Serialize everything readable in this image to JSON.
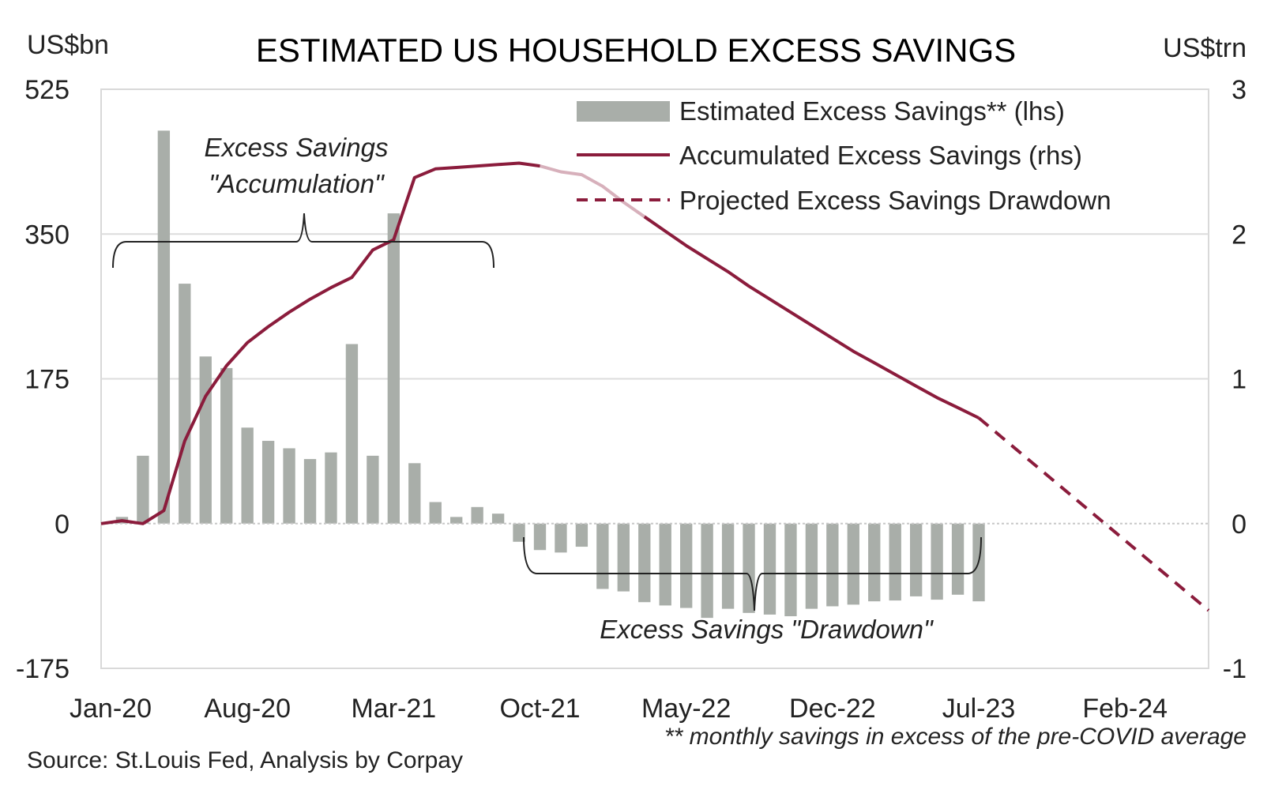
{
  "chart_data": {
    "type": "bar+line",
    "title": "ESTIMATED US HOUSEHOLD EXCESS SAVINGS",
    "left_unit": "US$bn",
    "right_unit": "US$trn",
    "ylim_left": [
      -175,
      525
    ],
    "ylim_right": [
      -1,
      3
    ],
    "left_ticks": [
      "525",
      "350",
      "175",
      "0",
      "-175"
    ],
    "right_ticks": [
      "3",
      "2",
      "1",
      "0",
      "-1"
    ],
    "x_tick_labels": [
      "Jan-20",
      "Aug-20",
      "Mar-21",
      "Oct-21",
      "May-22",
      "Dec-22",
      "Jul-23",
      "Feb-24"
    ],
    "categories": [
      "Jan-20",
      "Feb-20",
      "Mar-20",
      "Apr-20",
      "May-20",
      "Jun-20",
      "Jul-20",
      "Aug-20",
      "Sep-20",
      "Oct-20",
      "Nov-20",
      "Dec-20",
      "Jan-21",
      "Feb-21",
      "Mar-21",
      "Apr-21",
      "May-21",
      "Jun-21",
      "Jul-21",
      "Aug-21",
      "Sep-21",
      "Oct-21",
      "Nov-21",
      "Dec-21",
      "Jan-22",
      "Feb-22",
      "Mar-22",
      "Apr-22",
      "May-22",
      "Jun-22",
      "Jul-22",
      "Aug-22",
      "Sep-22",
      "Oct-22",
      "Nov-22",
      "Dec-22",
      "Jan-23",
      "Feb-23",
      "Mar-23",
      "Apr-23",
      "May-23",
      "Jun-23",
      "Jul-23",
      "Aug-23",
      "Sep-23",
      "Oct-23",
      "Nov-23",
      "Dec-23",
      "Jan-24",
      "Feb-24",
      "Mar-24",
      "Apr-24",
      "May-24",
      "Jun-24"
    ],
    "series": [
      {
        "name": "Estimated Excess Savings** (lhs)",
        "type": "bar",
        "axis": "left",
        "color": "#a9aea9",
        "x": [
          "Feb-20",
          "Mar-20",
          "Apr-20",
          "May-20",
          "Jun-20",
          "Jul-20",
          "Aug-20",
          "Sep-20",
          "Oct-20",
          "Nov-20",
          "Dec-20",
          "Jan-21",
          "Feb-21",
          "Mar-21",
          "Apr-21",
          "May-21",
          "Jun-21",
          "Jul-21",
          "Aug-21",
          "Sep-21",
          "Oct-21",
          "Nov-21",
          "Dec-21",
          "Jan-22",
          "Feb-22",
          "Mar-22",
          "Apr-22",
          "May-22",
          "Jun-22",
          "Jul-22",
          "Aug-22",
          "Sep-22",
          "Oct-22",
          "Nov-22",
          "Dec-22",
          "Jan-23",
          "Feb-23",
          "Mar-23",
          "Apr-23",
          "May-23",
          "Jun-23",
          "Jul-23"
        ],
        "values": [
          8,
          82,
          475,
          290,
          202,
          188,
          116,
          100,
          91,
          78,
          86,
          217,
          82,
          375,
          73,
          26,
          8,
          20,
          12,
          -22,
          -32,
          -35,
          -28,
          -79,
          -82,
          -95,
          -99,
          -102,
          -114,
          -103,
          -108,
          -110,
          -112,
          -103,
          -100,
          -98,
          -94,
          -93,
          -88,
          -92,
          -86,
          -94
        ]
      },
      {
        "name": "Accumulated Excess Savings (rhs)",
        "type": "line",
        "axis": "right",
        "color": "#8b1c3c",
        "x": [
          "Jan-20",
          "Feb-20",
          "Mar-20",
          "Apr-20",
          "May-20",
          "Jun-20",
          "Jul-20",
          "Aug-20",
          "Sep-20",
          "Oct-20",
          "Nov-20",
          "Dec-20",
          "Jan-21",
          "Feb-21",
          "Mar-21",
          "Apr-21",
          "May-21",
          "Jun-21",
          "Jul-21",
          "Aug-21",
          "Sep-21",
          "Oct-21",
          "Nov-21",
          "Dec-21",
          "Jan-22",
          "Feb-22",
          "Mar-22",
          "Apr-22",
          "May-22",
          "Jun-22",
          "Jul-22",
          "Aug-22",
          "Sep-22",
          "Oct-22",
          "Nov-22",
          "Dec-22",
          "Jan-23",
          "Feb-23",
          "Mar-23",
          "Apr-23",
          "May-23",
          "Jun-23",
          "Jul-23"
        ],
        "values": [
          0.0,
          0.02,
          0.0,
          0.09,
          0.57,
          0.88,
          1.09,
          1.25,
          1.36,
          1.46,
          1.55,
          1.63,
          1.7,
          1.89,
          1.96,
          2.39,
          2.45,
          2.46,
          2.47,
          2.48,
          2.49,
          2.47,
          2.43,
          2.41,
          2.33,
          2.22,
          2.12,
          2.02,
          1.92,
          1.83,
          1.74,
          1.64,
          1.55,
          1.46,
          1.37,
          1.28,
          1.19,
          1.11,
          1.03,
          0.95,
          0.87,
          0.8,
          0.73
        ]
      },
      {
        "name": "Projected Excess Savings Drawdown",
        "type": "line",
        "style": "dashed",
        "axis": "right",
        "color": "#8b1c3c",
        "x": [
          "Jul-23",
          "Jun-24"
        ],
        "values": [
          0.73,
          -0.6
        ]
      }
    ],
    "annotations": [
      {
        "text_line1": "Excess Savings",
        "text_line2": "\"Accumulation\""
      },
      {
        "text": "Excess Savings \"Drawdown\""
      }
    ],
    "legend_position": "top-right",
    "grid": "horizontal",
    "footnote": "** monthly savings in excess of the pre-COVID average",
    "source": "Source: St.Louis Fed, Analysis by Corpay",
    "colors": {
      "accent": "#8b1c3c",
      "bar": "#a9aea9",
      "grid": "#dcdcdc"
    }
  }
}
